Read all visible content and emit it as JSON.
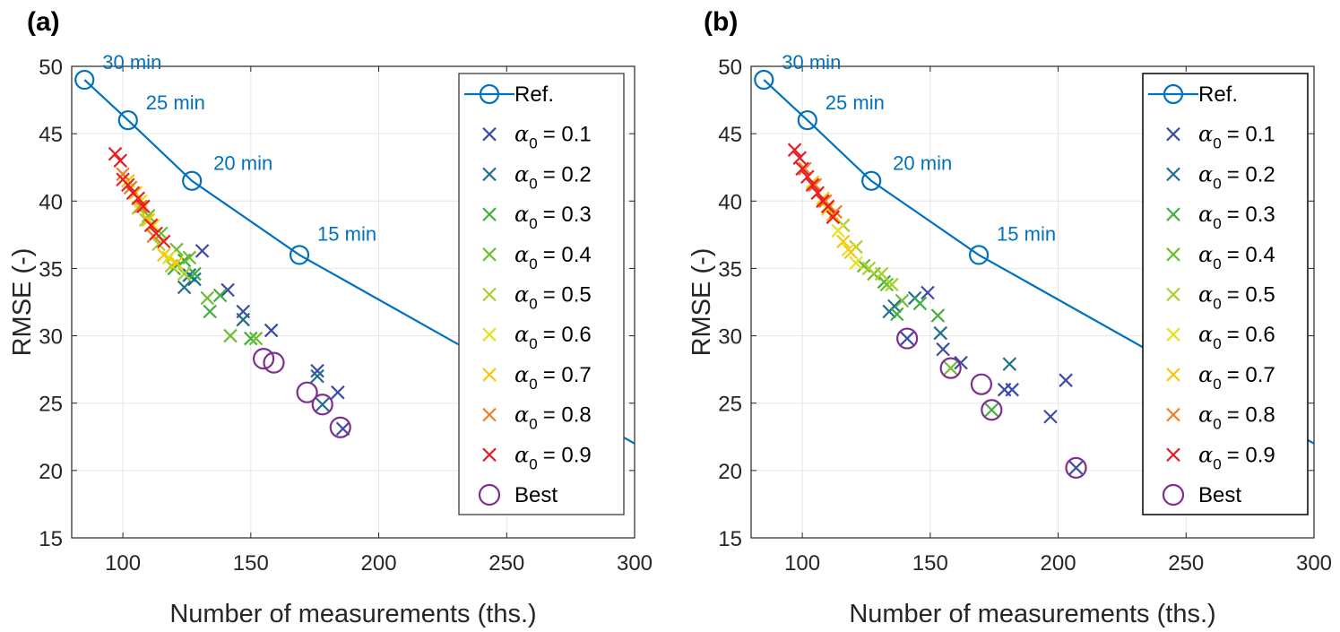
{
  "panel_labels": [
    "(a)",
    "(b)"
  ],
  "colors": {
    "ref": "#0072BD",
    "best": "#7E2F8E",
    "alpha": [
      "#3B4CA5",
      "#1E6F8E",
      "#3FAF3F",
      "#6DBE2E",
      "#A8D02B",
      "#E3E31E",
      "#F7C70A",
      "#F07D23",
      "#E61E25"
    ]
  },
  "chart_data": [
    {
      "type": "scatter",
      "panel": "(a)",
      "xlabel": "Number of measurements (ths.)",
      "ylabel": "RMSE (-)",
      "xlim": [
        80,
        300
      ],
      "ylim": [
        15,
        50
      ],
      "xticks": [
        100,
        150,
        200,
        250,
        300
      ],
      "yticks": [
        15,
        20,
        25,
        30,
        35,
        40,
        45,
        50
      ],
      "grid": true,
      "legend_position": "top-right",
      "ref": {
        "name": "Ref.",
        "x": [
          85,
          102,
          127,
          169,
          300
        ],
        "y": [
          49,
          46,
          41.5,
          36,
          22
        ],
        "labels": [
          "30 min",
          "25 min",
          "20 min",
          "15 min"
        ]
      },
      "series": [
        {
          "name": "α0 = 0.1",
          "x": [
            131,
            141,
            147,
            158,
            176,
            184,
            186
          ],
          "y": [
            36.3,
            33.4,
            31.8,
            30.4,
            27.4,
            25.8,
            23.1
          ]
        },
        {
          "name": "α0 = 0.2",
          "x": [
            124,
            126,
            128,
            147,
            176,
            178
          ],
          "y": [
            33.6,
            34.5,
            34.2,
            31.2,
            27.0,
            24.9
          ]
        },
        {
          "name": "α0 = 0.3",
          "x": [
            120,
            124,
            128,
            134,
            138,
            150
          ],
          "y": [
            35.0,
            35.6,
            34.6,
            31.8,
            33.0,
            29.8
          ]
        },
        {
          "name": "α0 = 0.4",
          "x": [
            110,
            115,
            121,
            126,
            133,
            142,
            152
          ],
          "y": [
            38.9,
            37.6,
            36.4,
            35.8,
            32.8,
            30.0,
            29.8
          ]
        },
        {
          "name": "α0 = 0.5",
          "x": [
            106,
            109,
            114,
            119,
            124
          ],
          "y": [
            39.5,
            38.6,
            36.8,
            35.2,
            34.6
          ]
        },
        {
          "name": "α0 = 0.6",
          "x": [
            103,
            107,
            112,
            118
          ],
          "y": [
            41.0,
            40.0,
            38.2,
            35.8
          ]
        },
        {
          "name": "α0 = 0.7",
          "x": [
            102,
            105,
            110,
            116,
            121
          ],
          "y": [
            41.5,
            40.6,
            38.6,
            36.0,
            35.4
          ]
        },
        {
          "name": "α0 =  0.8",
          "x": [
            100,
            103,
            107,
            112
          ],
          "y": [
            42.0,
            41.0,
            39.6,
            37.4
          ]
        },
        {
          "name": "α0 = 0.9",
          "x": [
            97,
            99,
            100,
            102,
            104,
            106,
            108,
            111,
            113,
            116
          ],
          "y": [
            43.5,
            43.0,
            41.6,
            41.2,
            40.6,
            40.2,
            39.6,
            38.2,
            37.6,
            37.0
          ]
        }
      ],
      "best": {
        "name": "Best",
        "x": [
          155,
          159,
          172,
          178,
          185
        ],
        "y": [
          28.3,
          28.0,
          25.8,
          24.9,
          23.2
        ]
      }
    },
    {
      "type": "scatter",
      "panel": "(b)",
      "xlabel": "Number of measurements (ths.)",
      "ylabel": "RMSE (-)",
      "xlim": [
        80,
        300
      ],
      "ylim": [
        15,
        50
      ],
      "xticks": [
        100,
        150,
        200,
        250,
        300
      ],
      "yticks": [
        15,
        20,
        25,
        30,
        35,
        40,
        45,
        50
      ],
      "grid": true,
      "legend_position": "top-right",
      "ref": {
        "name": "Ref.",
        "x": [
          85,
          102,
          127,
          169,
          300
        ],
        "y": [
          49,
          46,
          41.5,
          36,
          22
        ],
        "labels": [
          "30 min",
          "25 min",
          "20 min",
          "15 min"
        ]
      },
      "series": [
        {
          "name": "α0 = 0.1",
          "x": [
            141,
            149,
            155,
            162,
            179,
            182,
            197,
            203,
            207
          ],
          "y": [
            29.8,
            33.2,
            29.0,
            28.0,
            26.0,
            26.0,
            24.0,
            26.7,
            20.2
          ]
        },
        {
          "name": "α0 = 0.2",
          "x": [
            134,
            136,
            144,
            154,
            181
          ],
          "y": [
            31.8,
            32.2,
            32.8,
            30.2,
            27.9
          ]
        },
        {
          "name": "α0 = 0.3",
          "x": [
            132,
            137,
            146,
            153,
            174
          ],
          "y": [
            34.0,
            31.6,
            32.4,
            31.5,
            24.5
          ]
        },
        {
          "name": "α0 = 0.4",
          "x": [
            124,
            128,
            133,
            139,
            158
          ],
          "y": [
            35.2,
            34.6,
            33.8,
            32.6,
            27.6
          ]
        },
        {
          "name": "α0 = 0.5",
          "x": [
            116,
            121,
            126,
            131,
            135
          ],
          "y": [
            38.2,
            36.6,
            35.0,
            34.6,
            33.8
          ]
        },
        {
          "name": "α0 = 0.6",
          "x": [
            106,
            110,
            114,
            118,
            121
          ],
          "y": [
            40.6,
            39.4,
            37.8,
            36.4,
            35.4
          ]
        },
        {
          "name": "α0 = 0.7",
          "x": [
            104,
            108,
            112,
            116,
            119
          ],
          "y": [
            41.4,
            40.2,
            39.0,
            37.0,
            36.2
          ]
        },
        {
          "name": "α0 =  0.8",
          "x": [
            101,
            105,
            109,
            113
          ],
          "y": [
            42.4,
            41.2,
            40.0,
            39.2
          ]
        },
        {
          "name": "α0 = 0.9",
          "x": [
            97,
            99,
            100,
            102,
            104,
            106,
            108,
            110,
            112
          ],
          "y": [
            43.8,
            43.2,
            42.4,
            41.8,
            41.2,
            40.6,
            40.0,
            39.6,
            38.8
          ]
        }
      ],
      "best": {
        "name": "Best",
        "x": [
          141,
          158,
          170,
          174,
          207
        ],
        "y": [
          29.8,
          27.6,
          26.4,
          24.5,
          20.2
        ]
      }
    }
  ],
  "legend_entries": {
    "ref": "Ref.",
    "alpha_symbol": "α",
    "alpha_sub": "0",
    "alpha_values": [
      "= 0.1",
      "= 0.2",
      "= 0.3",
      "= 0.4",
      "= 0.5",
      "= 0.6",
      "= 0.7",
      "=  0.8",
      "= 0.9"
    ],
    "best": "Best"
  }
}
